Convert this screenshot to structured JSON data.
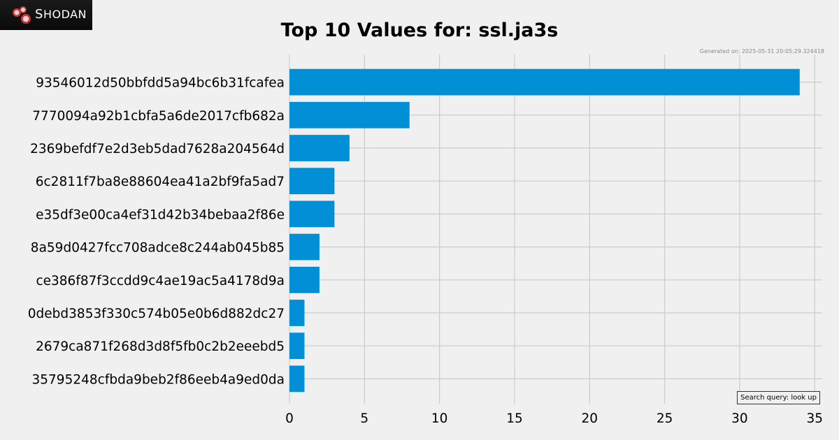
{
  "brand": {
    "name": "Shodan"
  },
  "header": {
    "title": "Top 10 Values for: ssl.ja3s",
    "generated": "Generated on: 2025-05-31 20:05:29.324418"
  },
  "footer": {
    "query": "Search query: look up"
  },
  "colors": {
    "bar": "#038fd6",
    "grid": "#cbcbcb",
    "background": "#f0f0f0"
  },
  "chart_data": {
    "type": "bar",
    "orientation": "horizontal",
    "title": "Top 10 Values for: ssl.ja3s",
    "categories": [
      "93546012d50bbfdd5a94bc6b31fcafea",
      "7770094a92b1cbfa5a6de2017cfb682a",
      "2369befdf7e2d3eb5dad7628a204564d",
      "6c2811f7ba8e88604ea41a2bf9fa5ad7",
      "e35df3e00ca4ef31d42b34bebaa2f86e",
      "8a59d0427fcc708adce8c244ab045b85",
      "ce386f87f3ccdd9c4ae19ac5a4178d9a",
      "0debd3853f330c574b05e0b6d882dc27",
      "2679ca871f268d3d8f5fb0c2b2eeebd5",
      "35795248cfbda9beb2f86eeb4a9ed0da"
    ],
    "values": [
      34,
      8,
      4,
      3,
      3,
      2,
      2,
      1,
      1,
      1
    ],
    "xlim": [
      0,
      35.5
    ],
    "xticks": [
      0,
      5,
      10,
      15,
      20,
      25,
      30,
      35
    ],
    "grid": true
  }
}
